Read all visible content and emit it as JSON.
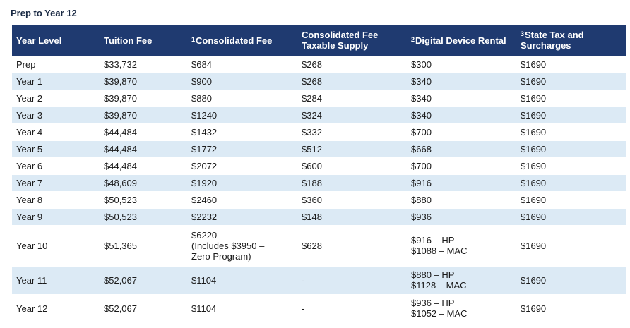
{
  "caption": "Prep to Year 12",
  "headers": {
    "year_level": "Year Level",
    "tuition": "Tuition Fee",
    "consolidated_sup": "1",
    "consolidated": "Consolidated Fee",
    "taxable_line1": "Consolidated Fee",
    "taxable_line2": "Taxable Supply",
    "device_sup": "2",
    "device": "Digital Device Rental",
    "state_sup": "3",
    "state_line1": "State Tax and",
    "state_line2": "Surcharges"
  },
  "rows": [
    {
      "year": "Prep",
      "tuition": "$33,732",
      "consolidated": [
        "$684"
      ],
      "taxable": "$268",
      "device": [
        "$300"
      ],
      "state": "$1690"
    },
    {
      "year": "Year 1",
      "tuition": "$39,870",
      "consolidated": [
        "$900"
      ],
      "taxable": "$268",
      "device": [
        "$340"
      ],
      "state": "$1690"
    },
    {
      "year": "Year 2",
      "tuition": "$39,870",
      "consolidated": [
        "$880"
      ],
      "taxable": "$284",
      "device": [
        "$340"
      ],
      "state": "$1690"
    },
    {
      "year": "Year 3",
      "tuition": "$39,870",
      "consolidated": [
        "$1240"
      ],
      "taxable": "$324",
      "device": [
        "$340"
      ],
      "state": "$1690"
    },
    {
      "year": "Year 4",
      "tuition": "$44,484",
      "consolidated": [
        "$1432"
      ],
      "taxable": "$332",
      "device": [
        "$700"
      ],
      "state": "$1690"
    },
    {
      "year": "Year 5",
      "tuition": "$44,484",
      "consolidated": [
        "$1772"
      ],
      "taxable": "$512",
      "device": [
        "$668"
      ],
      "state": "$1690"
    },
    {
      "year": "Year 6",
      "tuition": "$44,484",
      "consolidated": [
        "$2072"
      ],
      "taxable": "$600",
      "device": [
        "$700"
      ],
      "state": "$1690"
    },
    {
      "year": "Year 7",
      "tuition": "$48,609",
      "consolidated": [
        "$1920"
      ],
      "taxable": "$188",
      "device": [
        "$916"
      ],
      "state": "$1690"
    },
    {
      "year": "Year 8",
      "tuition": "$50,523",
      "consolidated": [
        "$2460"
      ],
      "taxable": "$360",
      "device": [
        "$880"
      ],
      "state": "$1690"
    },
    {
      "year": "Year 9",
      "tuition": "$50,523",
      "consolidated": [
        "$2232"
      ],
      "taxable": "$148",
      "device": [
        "$936"
      ],
      "state": "$1690"
    },
    {
      "year": "Year 10",
      "tuition": "$51,365",
      "consolidated": [
        "$6220",
        "(Includes $3950 –",
        "Zero Program)"
      ],
      "taxable": "$628",
      "device": [
        "$916 – HP",
        "$1088 – MAC"
      ],
      "state": "$1690"
    },
    {
      "year": "Year 11",
      "tuition": "$52,067",
      "consolidated": [
        "$1104"
      ],
      "taxable": "-",
      "device": [
        "$880 – HP",
        "$1128 – MAC"
      ],
      "state": "$1690"
    },
    {
      "year": "Year 12",
      "tuition": "$52,067",
      "consolidated": [
        "$1104"
      ],
      "taxable": "-",
      "device": [
        "$936 – HP",
        "$1052 – MAC"
      ],
      "state": "$1690"
    }
  ]
}
